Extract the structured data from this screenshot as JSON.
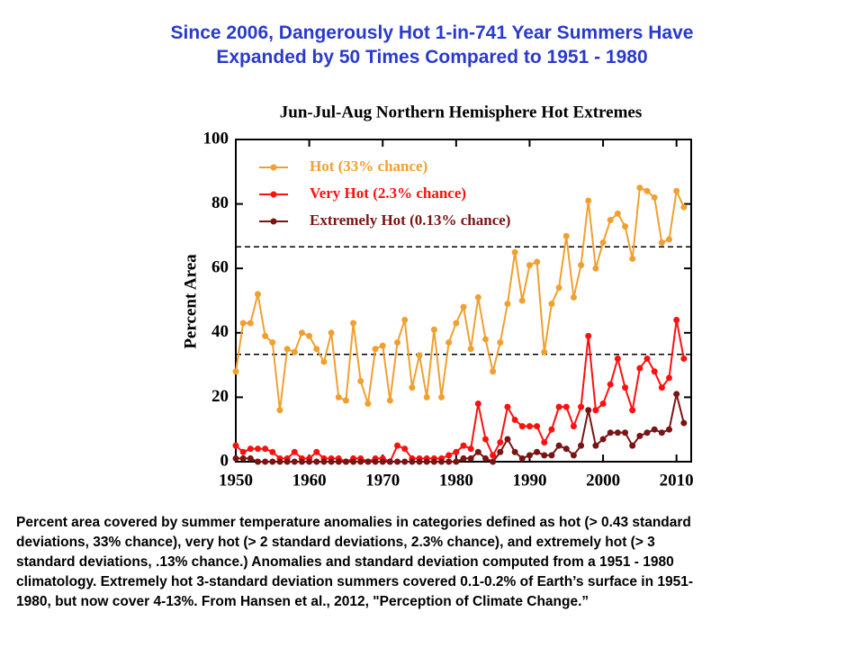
{
  "header": {
    "lines": [
      "Since 2006, Dangerously Hot 1-in-741 Year Summers Have",
      "Expanded by 50 Times Compared to 1951 - 1980"
    ]
  },
  "caption": {
    "lines": [
      "Percent area covered by summer temperature anomalies in categories defined as hot (> 0.43 standard",
      "deviations, 33% chance), very hot (> 2 standard deviations, 2.3% chance), and extremely hot (> 3",
      "standard deviations, .13% chance.)  Anomalies and standard deviation computed from a 1951 - 1980",
      "climatology. Extremely hot 3-standard deviation summers covered 0.1-0.2% of Earth’s surface in 1951-",
      "1980, but now cover 4-13%. From Hansen et al., 2012, \"Perception of Climate Change.”"
    ]
  },
  "chart_data": {
    "type": "line",
    "title": "Jun-Jul-Aug Northern Hemisphere Hot Extremes",
    "ylabel": "Percent Area",
    "x": [
      1950,
      1951,
      1952,
      1953,
      1954,
      1955,
      1956,
      1957,
      1958,
      1959,
      1960,
      1961,
      1962,
      1963,
      1964,
      1965,
      1966,
      1967,
      1968,
      1969,
      1970,
      1971,
      1972,
      1973,
      1974,
      1975,
      1976,
      1977,
      1978,
      1979,
      1980,
      1981,
      1982,
      1983,
      1984,
      1985,
      1986,
      1987,
      1988,
      1989,
      1990,
      1991,
      1992,
      1993,
      1994,
      1995,
      1996,
      1997,
      1998,
      1999,
      2000,
      2001,
      2002,
      2003,
      2004,
      2005,
      2006,
      2007,
      2008,
      2009,
      2010,
      2011
    ],
    "series": [
      {
        "name": "Hot (33% chance)",
        "color": "#f0a030",
        "values": [
          28,
          43,
          43,
          52,
          39,
          37,
          16,
          35,
          34,
          40,
          39,
          35,
          31,
          40,
          20,
          19,
          43,
          25,
          18,
          35,
          36,
          19,
          37,
          44,
          23,
          33,
          20,
          41,
          20,
          37,
          43,
          48,
          35,
          51,
          38,
          28,
          37,
          49,
          65,
          50,
          61,
          62,
          34,
          49,
          54,
          70,
          51,
          61,
          81,
          60,
          68,
          75,
          77,
          73,
          63,
          85,
          84,
          82,
          68,
          69,
          84,
          79
        ]
      },
      {
        "name": "Very Hot (2.3% chance)",
        "color": "#ff1010",
        "values": [
          5,
          3,
          4,
          4,
          4,
          3,
          1,
          1,
          3,
          1,
          1,
          3,
          1,
          1,
          1,
          0,
          1,
          1,
          0,
          1,
          1,
          0,
          5,
          4,
          1,
          1,
          1,
          1,
          1,
          2,
          3,
          5,
          4,
          18,
          7,
          2,
          6,
          17,
          13,
          11,
          11,
          11,
          6,
          10,
          17,
          17,
          11,
          17,
          39,
          16,
          18,
          24,
          32,
          23,
          16,
          29,
          32,
          28,
          23,
          26,
          44,
          32
        ]
      },
      {
        "name": "Extremely Hot (0.13% chance)",
        "color": "#7a1414",
        "values": [
          1,
          1,
          1,
          0,
          0,
          0,
          0,
          0,
          0,
          0,
          0,
          0,
          0,
          0,
          0,
          0,
          0,
          0,
          0,
          0,
          0,
          0,
          0,
          0,
          0,
          0,
          0,
          0,
          0,
          0,
          0,
          1,
          1,
          3,
          1,
          0,
          3,
          7,
          3,
          1,
          2,
          3,
          2,
          2,
          5,
          4,
          2,
          5,
          16,
          5,
          7,
          9,
          9,
          9,
          5,
          8,
          9,
          10,
          9,
          10,
          21,
          12
        ]
      }
    ],
    "hlines": [
      33.3,
      66.7
    ],
    "xlim": [
      1950,
      2012
    ],
    "xticks": [
      1950,
      1960,
      1970,
      1980,
      1990,
      2000,
      2010
    ],
    "ylim": [
      0,
      100
    ],
    "yticks": [
      0,
      20,
      40,
      60,
      80,
      100
    ],
    "legend": "upper-left"
  }
}
